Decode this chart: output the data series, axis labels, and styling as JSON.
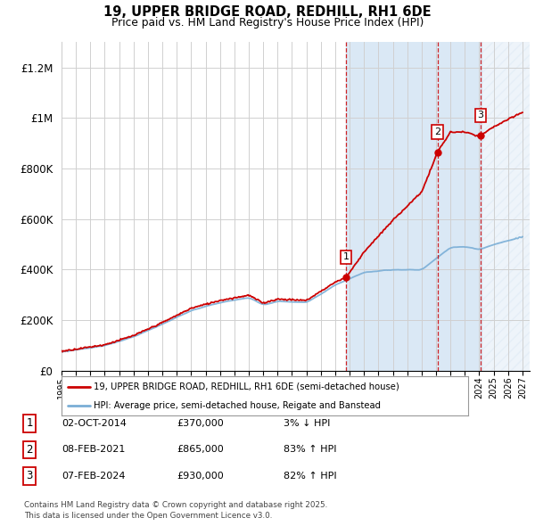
{
  "title_line1": "19, UPPER BRIDGE ROAD, REDHILL, RH1 6DE",
  "title_line2": "Price paid vs. HM Land Registry's House Price Index (HPI)",
  "ylim": [
    0,
    1300000
  ],
  "xlim_start": 1995.0,
  "xlim_end": 2027.5,
  "yticks": [
    0,
    200000,
    400000,
    600000,
    800000,
    1000000,
    1200000
  ],
  "ytick_labels": [
    "£0",
    "£200K",
    "£400K",
    "£600K",
    "£800K",
    "£1M",
    "£1.2M"
  ],
  "legend1_label": "19, UPPER BRIDGE ROAD, REDHILL, RH1 6DE (semi-detached house)",
  "legend2_label": "HPI: Average price, semi-detached house, Reigate and Banstead",
  "legend1_color": "#cc0000",
  "legend2_color": "#7aaed6",
  "sale_points": [
    {
      "date_dec": 2014.75,
      "price": 370000,
      "label": "1"
    },
    {
      "date_dec": 2021.1,
      "price": 865000,
      "label": "2"
    },
    {
      "date_dec": 2024.1,
      "price": 930000,
      "label": "3"
    }
  ],
  "table_rows": [
    {
      "num": "1",
      "date": "02-OCT-2014",
      "price": "£370,000",
      "change": "3% ↓ HPI"
    },
    {
      "num": "2",
      "date": "08-FEB-2021",
      "price": "£865,000",
      "change": "83% ↑ HPI"
    },
    {
      "num": "3",
      "date": "07-FEB-2024",
      "price": "£930,000",
      "change": "82% ↑ HPI"
    }
  ],
  "footnote": "Contains HM Land Registry data © Crown copyright and database right 2025.\nThis data is licensed under the Open Government Licence v3.0.",
  "bg_color": "#ffffff",
  "grid_color": "#d0d0d0",
  "hpi_line_color": "#7aaed6",
  "price_line_color": "#cc0000",
  "sale_marker_color": "#cc0000",
  "shaded_region_color": "#dae8f5",
  "vline_color": "#cc0000",
  "hatch_color": "#c8d8e8"
}
